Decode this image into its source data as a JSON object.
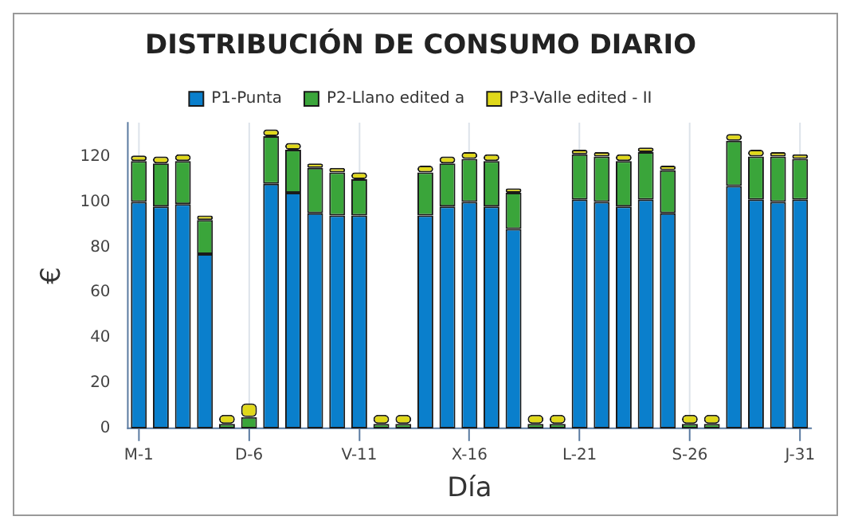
{
  "chart_data": {
    "type": "bar",
    "title": "DISTRIBUCIÓN DE CONSUMO DIARIO",
    "xlabel": "Día",
    "ylabel": "€",
    "categories": [
      "M-1",
      null,
      null,
      null,
      null,
      "D-6",
      null,
      null,
      null,
      null,
      "V-11",
      null,
      null,
      null,
      null,
      "X-16",
      null,
      null,
      null,
      null,
      "L-21",
      null,
      null,
      null,
      null,
      "S-26",
      null,
      null,
      null,
      null,
      "J-31"
    ],
    "series": [
      {
        "name": "P1-Punta",
        "color": "#0a7fcc",
        "values": [
          100,
          98,
          99,
          77,
          0,
          0,
          108,
          104,
          95,
          94,
          94,
          0,
          0,
          94,
          98,
          100,
          98,
          88,
          0,
          0,
          101,
          100,
          98,
          101,
          95,
          0,
          0,
          107,
          101,
          100,
          101
        ]
      },
      {
        "name": "P2-Llano edited a",
        "color": "#3aa53a",
        "values": [
          18,
          19,
          19,
          15,
          2,
          5,
          21,
          19,
          20,
          19,
          16,
          2,
          2,
          19,
          19,
          19,
          20,
          16,
          2,
          2,
          20,
          20,
          20,
          21,
          19,
          2,
          2,
          20,
          19,
          20,
          18
        ]
      },
      {
        "name": "P3-Valle edited - II",
        "color": "#e0d81a",
        "values": [
          2.5,
          3,
          3,
          2,
          4,
          6,
          3,
          3,
          2,
          2,
          3,
          4,
          4,
          3,
          3,
          3,
          3,
          2,
          4,
          4,
          2,
          2,
          3,
          2,
          2,
          4,
          4,
          3,
          3,
          2,
          2
        ]
      }
    ],
    "stacked": true,
    "ylim": [
      0,
      135
    ],
    "yticks": [
      0,
      20,
      40,
      60,
      80,
      100,
      120
    ],
    "grid": "x",
    "legend": "top"
  }
}
